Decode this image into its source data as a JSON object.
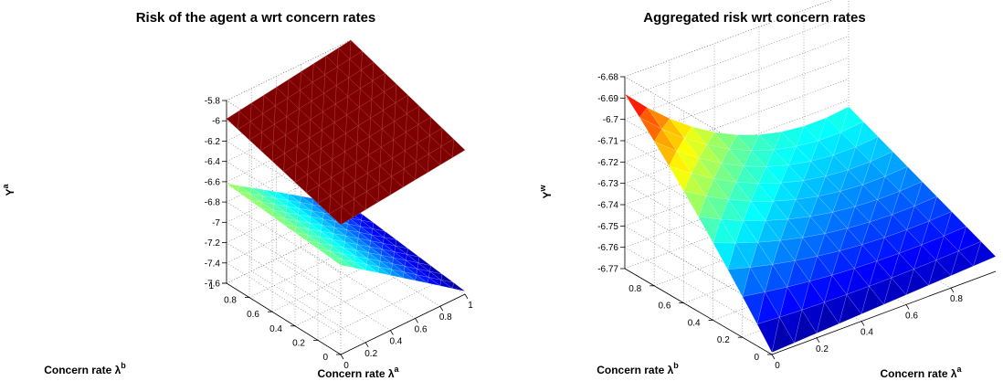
{
  "chart_data": [
    {
      "type": "surface",
      "title": "Risk of the agent a wrt concern rates",
      "xlabel": "Concern rate λ",
      "xlabel_sup": "a",
      "ylabel": "Concern rate λ",
      "ylabel_sup": "b",
      "zlabel": "Y",
      "zlabel_sup": "a",
      "xlim": [
        0,
        1
      ],
      "ylim": [
        0,
        1
      ],
      "zlim": [
        -7.6,
        -5.8
      ],
      "x_ticks": [
        "0",
        "0.2",
        "0.4",
        "0.6",
        "0.8",
        "1"
      ],
      "y_ticks": [
        "0",
        "0.2",
        "0.4",
        "0.6",
        "0.8",
        "1"
      ],
      "z_ticks": [
        "-5.8",
        "-6",
        "-6.2",
        "-6.4",
        "-6.6",
        "-6.8",
        "-7",
        "-7.2",
        "-7.4",
        "-7.6"
      ],
      "grid": true,
      "colormap": "jet",
      "surfaces": [
        {
          "corner_values": {
            "la0_lb0": -6.72,
            "la1_lb0": -7.57,
            "la0_lb1": -6.62,
            "la1_lb1": -7.43
          },
          "curvature": 0.02,
          "color_mode": "colormap"
        },
        {
          "corner_values": {
            "la0_lb0": -6.32,
            "la1_lb0": -6.18,
            "la0_lb1": -5.98,
            "la1_lb1": -5.8
          },
          "curvature": 0,
          "color_mode": "flat",
          "color": "#7f0000"
        }
      ]
    },
    {
      "type": "surface",
      "title": "Aggregated risk wrt concern rates",
      "xlabel": "Concern rate λ",
      "xlabel_sup": "a",
      "ylabel": "Concern rate λ",
      "ylabel_sup": "b",
      "zlabel": "Y",
      "zlabel_sup": "w",
      "xlim": [
        0,
        1
      ],
      "ylim": [
        0,
        1
      ],
      "zlim": [
        -6.77,
        -6.68
      ],
      "x_ticks": [
        "0",
        "0.2",
        "0.4",
        "0.6",
        "0.8"
      ],
      "y_ticks": [
        "0",
        "0.2",
        "0.4",
        "0.6",
        "0.8"
      ],
      "z_ticks": [
        "-6.68",
        "-6.69",
        "-6.7",
        "-6.71",
        "-6.72",
        "-6.73",
        "-6.74",
        "-6.75",
        "-6.76",
        "-6.77"
      ],
      "grid": true,
      "colormap": "jet",
      "surfaces": [
        {
          "corner_values": {
            "la0_lb0": -6.769,
            "la1_lb0": -6.763,
            "la0_lb1": -6.688,
            "la1_lb1": -6.733
          },
          "color_mode": "colormap",
          "model": "quadratic-bowl"
        }
      ]
    }
  ]
}
